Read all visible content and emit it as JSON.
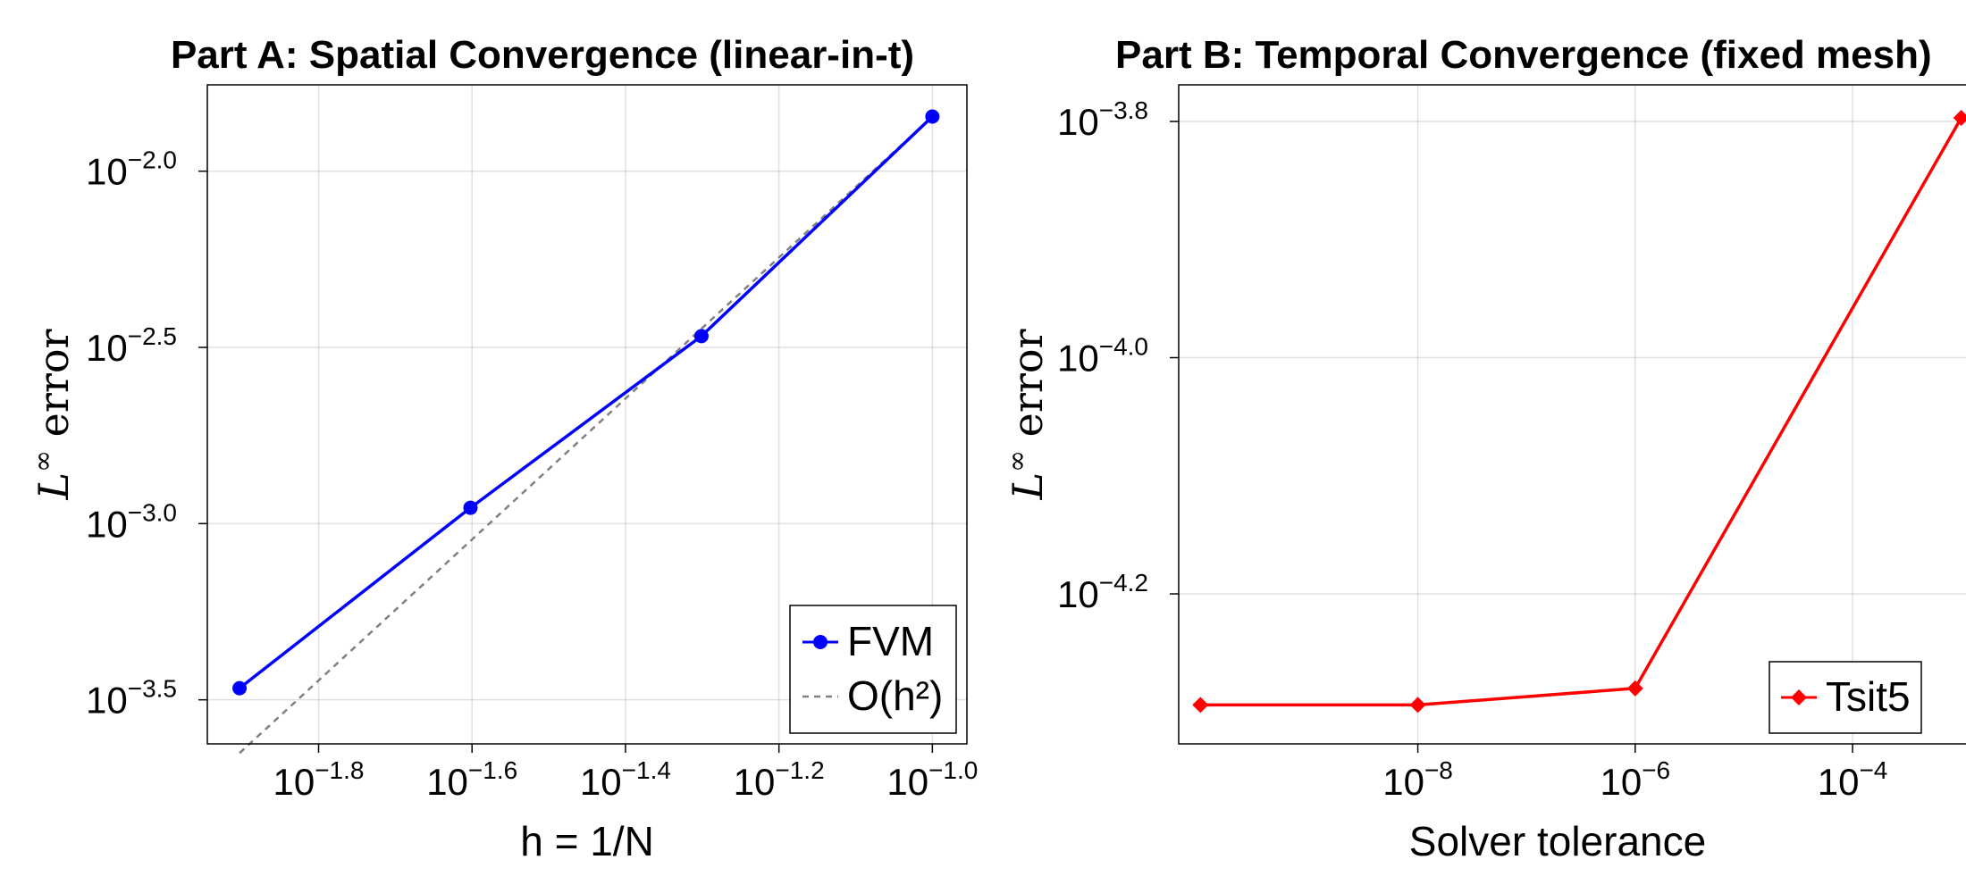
{
  "chart_data": [
    {
      "type": "line",
      "title": "Part A: Spatial Convergence (linear-in-t)",
      "xlabel": "h = 1/N",
      "ylabel_main": "L",
      "ylabel_sup": "∞",
      "ylabel_rest": " error",
      "xscale": "log10",
      "yscale": "log10",
      "xlim_log10": [
        -1.945,
        -0.955
      ],
      "ylim_log10": [
        -3.625,
        -1.755
      ],
      "xticks": [
        {
          "base": "10",
          "exp": "−1.8",
          "value_log10": -1.8
        },
        {
          "base": "10",
          "exp": "−1.6",
          "value_log10": -1.6
        },
        {
          "base": "10",
          "exp": "−1.4",
          "value_log10": -1.4
        },
        {
          "base": "10",
          "exp": "−1.2",
          "value_log10": -1.2
        },
        {
          "base": "10",
          "exp": "−1.0",
          "value_log10": -1.0
        }
      ],
      "yticks": [
        {
          "base": "10",
          "exp": "−2.0",
          "value_log10": -2.0
        },
        {
          "base": "10",
          "exp": "−2.5",
          "value_log10": -2.5
        },
        {
          "base": "10",
          "exp": "−3.0",
          "value_log10": -3.0
        },
        {
          "base": "10",
          "exp": "−3.5",
          "value_log10": -3.5
        }
      ],
      "grid": true,
      "legend_position": "bottom-right",
      "series": [
        {
          "name": "FVM",
          "color": "#0000ff",
          "style": "solid",
          "marker": "circle",
          "x_log10": [
            -1.903,
            -1.602,
            -1.301,
            -1.0
          ],
          "y_log10": [
            -3.467,
            -2.955,
            -2.468,
            -1.845
          ]
        },
        {
          "name": "O(h²)",
          "color": "#808080",
          "style": "dashed",
          "marker": "none",
          "x_log10": [
            -1.903,
            -1.0
          ],
          "y_log10": [
            -3.651,
            -1.845
          ]
        }
      ]
    },
    {
      "type": "line",
      "title": "Part B: Temporal Convergence (fixed mesh)",
      "xlabel": "Solver tolerance",
      "ylabel_main": "L",
      "ylabel_sup": "∞",
      "ylabel_rest": " error",
      "xscale": "log10",
      "yscale": "log10",
      "xlim_log10": [
        -10.2,
        -2.8
      ],
      "ylim_log10": [
        -4.327,
        -3.769
      ],
      "xticks": [
        {
          "base": "10",
          "exp": "−8",
          "value_log10": -8
        },
        {
          "base": "10",
          "exp": "−6",
          "value_log10": -6
        },
        {
          "base": "10",
          "exp": "−4",
          "value_log10": -4
        }
      ],
      "yticks": [
        {
          "base": "10",
          "exp": "−3.8",
          "value_log10": -3.8
        },
        {
          "base": "10",
          "exp": "−4.0",
          "value_log10": -4.0
        },
        {
          "base": "10",
          "exp": "−4.2",
          "value_log10": -4.2
        }
      ],
      "grid": true,
      "legend_position": "bottom-right",
      "series": [
        {
          "name": "Tsit5",
          "color": "#ff0000",
          "style": "solid",
          "marker": "diamond",
          "x_log10": [
            -10,
            -8,
            -6,
            -3
          ],
          "y_log10": [
            -4.294,
            -4.294,
            -4.28,
            -3.797
          ]
        }
      ]
    }
  ]
}
